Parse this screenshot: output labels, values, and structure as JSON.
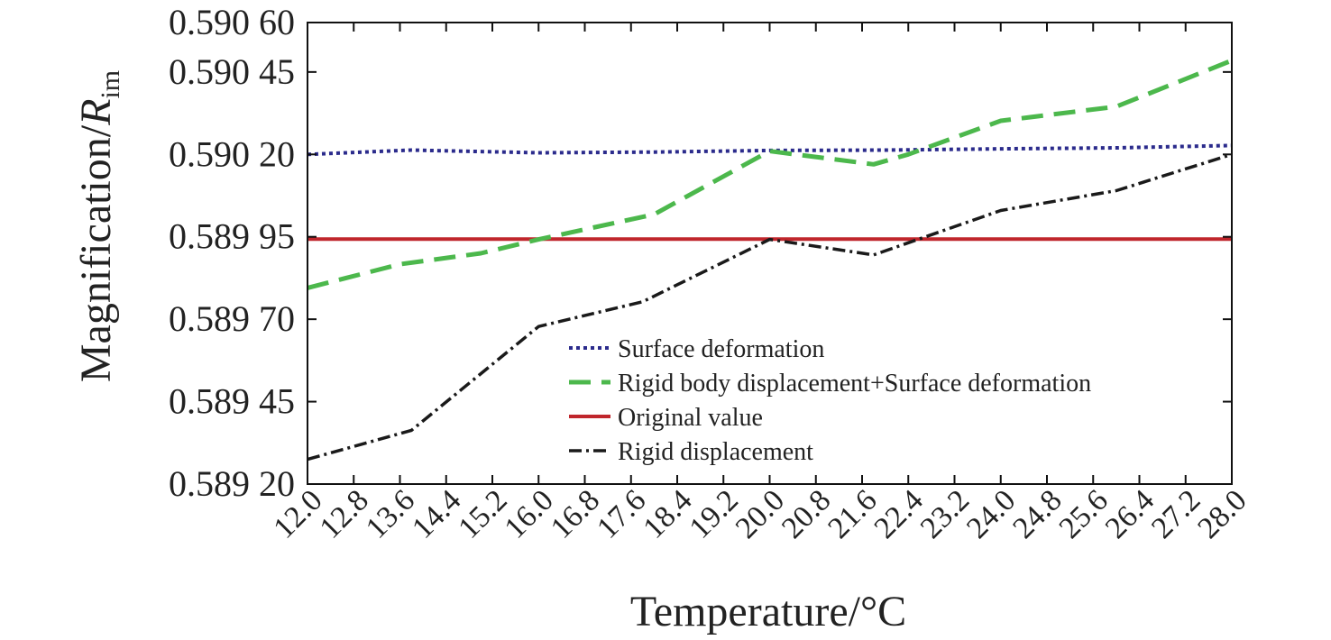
{
  "chart_data": {
    "type": "line",
    "ylabel": "Magnification/",
    "ylabel_italic": "R",
    "ylabel_sub": "im",
    "xlabel": "Temperature/°C",
    "x_ticks": [
      "12.0",
      "12.8",
      "13.6",
      "14.4",
      "15.2",
      "16.0",
      "16.8",
      "17.6",
      "18.4",
      "19.2",
      "20.0",
      "20.8",
      "21.6",
      "22.4",
      "23.2",
      "24.0",
      "24.8",
      "25.6",
      "26.4",
      "27.2",
      "28.0"
    ],
    "y_ticks": [
      0.5892,
      0.58945,
      0.5897,
      0.58995,
      0.5902,
      0.59045,
      0.5906
    ],
    "y_tick_labels": [
      "0.589 20",
      "0.589 45",
      "0.589 70",
      "0.589 95",
      "0.590 20",
      "0.590 45",
      "0.590 60"
    ],
    "xlim": [
      12.0,
      28.0
    ],
    "ylim": [
      0.5892,
      0.5906
    ],
    "legend_position": "center",
    "series": [
      {
        "name": "Surface deformation",
        "color": "#2b2b8c",
        "style": "dotted",
        "x": [
          12.0,
          13.8,
          16.0,
          18.0,
          20.0,
          22.0,
          24.0,
          26.0,
          28.0
        ],
        "y": [
          0.5902,
          0.590213,
          0.590205,
          0.590207,
          0.590212,
          0.590213,
          0.590217,
          0.59022,
          0.590227
        ]
      },
      {
        "name": "Rigid body displacement+Surface deformation",
        "color": "#4cb84c",
        "style": "dashed",
        "x": [
          12.0,
          13.6,
          15.0,
          16.0,
          18.0,
          20.0,
          21.8,
          22.4,
          24.0,
          26.0,
          28.0
        ],
        "y": [
          0.589795,
          0.589867,
          0.5899,
          0.589942,
          0.590018,
          0.59021,
          0.59017,
          0.5902,
          0.590302,
          0.590345,
          0.590485
        ]
      },
      {
        "name": "Original value",
        "color": "#c0262c",
        "style": "solid",
        "x": [
          12.0,
          28.0
        ],
        "y": [
          0.589943,
          0.589943
        ]
      },
      {
        "name": "Rigid displacement",
        "color": "#1a1a1a",
        "style": "dashdot",
        "x": [
          12.0,
          13.8,
          16.0,
          17.8,
          20.0,
          21.8,
          24.0,
          26.0,
          28.0
        ],
        "y": [
          0.589275,
          0.589363,
          0.589678,
          0.589753,
          0.589942,
          0.589895,
          0.59003,
          0.59009,
          0.5902
        ]
      }
    ]
  }
}
